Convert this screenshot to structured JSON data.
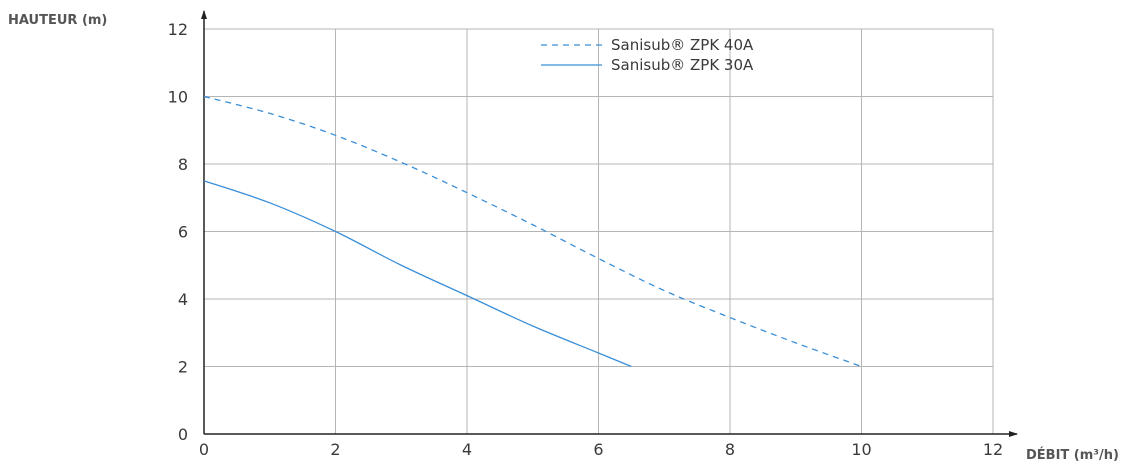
{
  "chart_data": {
    "type": "line",
    "ylabel": "HAUTEUR (m)",
    "xlabel": "DÉBIT (m³/h)",
    "xlim": [
      0,
      12
    ],
    "ylim": [
      0,
      12
    ],
    "x_ticks": [
      0,
      2,
      4,
      6,
      8,
      10,
      12
    ],
    "y_ticks": [
      0,
      2,
      4,
      6,
      8,
      10,
      12
    ],
    "grid": true,
    "legend_position": "top-center",
    "series": [
      {
        "name": "Sanisub® ZPK 40A",
        "style": "dashed",
        "color": "#3a8fd8",
        "x": [
          0,
          1,
          2,
          3,
          4,
          5,
          6,
          7,
          8,
          9,
          10
        ],
        "y": [
          10.0,
          9.5,
          8.85,
          8.05,
          7.15,
          6.2,
          5.2,
          4.25,
          3.45,
          2.7,
          2.0
        ]
      },
      {
        "name": "Sanisub® ZPK 30A",
        "style": "solid",
        "color": "#3a8fd8",
        "x": [
          0,
          1,
          2,
          3,
          4,
          5,
          6,
          6.5
        ],
        "y": [
          7.5,
          6.85,
          6.0,
          5.0,
          4.1,
          3.2,
          2.4,
          2.0
        ]
      }
    ]
  }
}
